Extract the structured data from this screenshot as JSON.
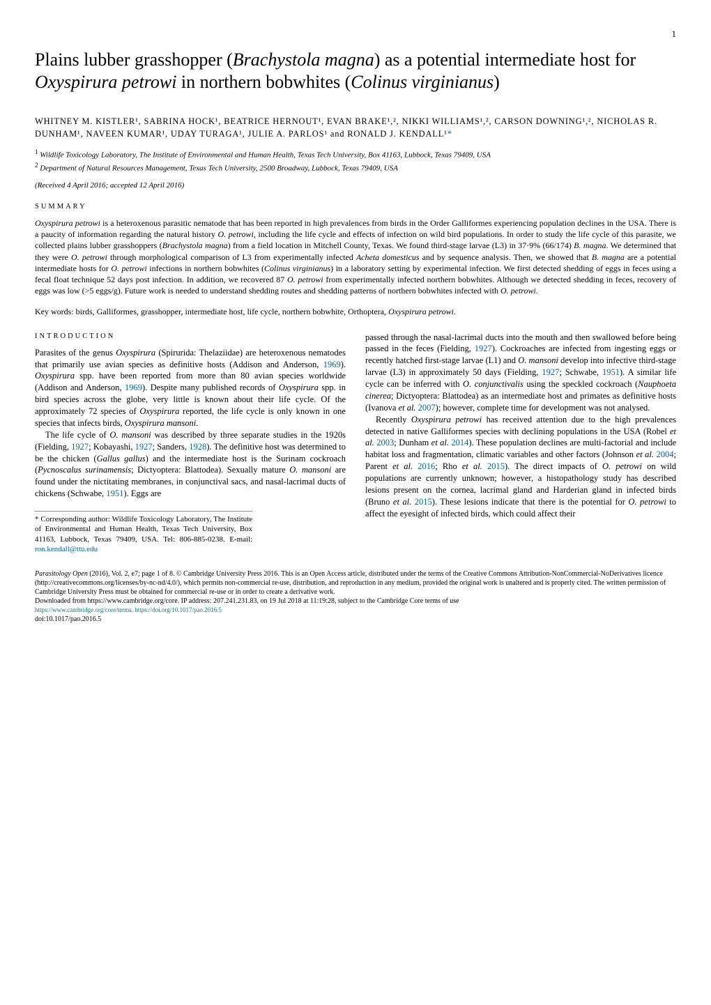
{
  "page_number": "1",
  "title_plain_before": "Plains lubber grasshopper (",
  "title_sp1": "Brachystola magna",
  "title_mid1": ") as a potential intermediate host for ",
  "title_sp2": "Oxyspirura petrowi",
  "title_mid2": " in northern bobwhites (",
  "title_sp3": "Colinus virginianus",
  "title_end": ")",
  "authors_line": "WHITNEY M. KISTLER¹, SABRINA HOCK¹, BEATRICE HERNOUT¹, EVAN BRAKE¹,², NIKKI WILLIAMS¹,², CARSON DOWNING¹,², NICHOLAS R. DUNHAM¹, NAVEEN KUMAR¹, UDAY TURAGA¹, JULIE A. PARLOS¹ and RONALD J. KENDALL¹",
  "authors_asterisk": "*",
  "aff1_sup": "1",
  "aff1": " Wildlife Toxicology Laboratory, The Institute of Environmental and Human Health, Texas Tech University, Box 41163, Lubbock, Texas 79409, USA",
  "aff2_sup": "2",
  "aff2": " Department of Natural Resources Management, Texas Tech University, 2500 Broadway, Lubbock, Texas 79409, USA",
  "received": "(Received 4 April 2016; accepted 12 April 2016)",
  "summary_heading": "SUMMARY",
  "abstract_html": "Oxyspirura petrowi is a heteroxenous parasitic nematode that has been reported in high prevalences from birds in the Order Galliformes experiencing population declines in the USA. There is a paucity of information regarding the natural history O. petrowi, including the life cycle and effects of infection on wild bird populations. In order to study the life cycle of this parasite, we collected plains lubber grasshoppers (Brachystola magna) from a field location in Mitchell County, Texas. We found third-stage larvae (L3) in 37·9% (66/174) B. magna. We determined that they were O. petrowi through morphological comparison of L3 from experimentally infected Acheta domesticus and by sequence analysis. Then, we showed that B. magna are a potential intermediate hosts for O. petrowi infections in northern bobwhites (Colinus virginianus) in a laboratory setting by experimental infection. We first detected shedding of eggs in feces using a fecal float technique 52 days post infection. In addition, we recovered 87 O. petrowi from experimentally infected northern bobwhites. Although we detected shedding in feces, recovery of eggs was low (>5 eggs/g). Future work is needed to understand shedding routes and shedding patterns of northern bobwhites infected with O. petrowi.",
  "keywords_label": "Key words: ",
  "keywords_text": "birds, Galliformes, grasshopper, intermediate host, life cycle, northern bobwhite, Orthoptera, ",
  "keywords_italic": "Oxyspirura petrowi",
  "keywords_end": ".",
  "intro_heading": "INTRODUCTION",
  "col1_p1": "Parasites of the genus Oxyspirura (Spirurida: Thelaziidae) are heteroxenous nematodes that primarily use avian species as definitive hosts (Addison and Anderson, 1969). Oxyspirura spp. have been reported from more than 80 avian species worldwide (Addison and Anderson, 1969). Despite many published records of Oxyspirura spp. in bird species across the globe, very little is known about their life cycle. Of the approximately 72 species of Oxyspirura reported, the life cycle is only known in one species that infects birds, Oxyspirura mansoni.",
  "col1_p2": "The life cycle of O. mansoni was described by three separate studies in the 1920s (Fielding, 1927; Kobayashi, 1927; Sanders, 1928). The definitive host was determined to be the chicken (Gallus gallus) and the intermediate host is the Surinam cockroach (Pycnoscalus surinamensis; Dictyoptera: Blattodea). Sexually mature O. mansoni are found under the nictitating membranes, in conjunctival sacs, and nasal-lacrimal ducts of chickens (Schwabe, 1951). Eggs are",
  "corresp_text_before": "* Corresponding author: Wildlife Toxicology Laboratory, The Institute of Environmental and Human Health, Texas Tech University, Box 41163, Lubbock, Texas 79409, USA. Tel: 806-885-0238. E-mail: ",
  "corresp_email": "ron.kendall@ttu.edu",
  "col2_p1": "passed through the nasal-lacrimal ducts into the mouth and then swallowed before being passed in the feces (Fielding, 1927). Cockroaches are infected from ingesting eggs or recently hatched first-stage larvae (L1) and O. mansoni develop into infective third-stage larvae (L3) in approximately 50 days (Fielding, 1927; Schwabe, 1951). A similar life cycle can be inferred with O. conjunctivalis using the speckled cockroach (Nauphoeta cinerea; Dictyoptera: Blattodea) as an intermediate host and primates as definitive hosts (Ivanova et al. 2007); however, complete time for development was not analysed.",
  "col2_p2": "Recently Oxyspirura petrowi has received attention due to the high prevalences detected in native Galliformes species with declining populations in the USA (Robel et al. 2003; Dunham et al. 2014). These population declines are multi-factorial and include habitat loss and fragmentation, climatic variables and other factors (Johnson et al. 2004; Parent et al. 2016; Rho et al. 2015). The direct impacts of O. petrowi on wild populations are currently unknown; however, a histopathology study has described lesions present on the cornea, lacrimal gland and Harderian gland in infected birds (Bruno et al. 2015). These lesions indicate that there is the potential for O. petrowi to affect the eyesight of infected birds, which could affect their",
  "footer_journal": "Parasitology Open",
  "footer_citation": " (2016), Vol. 2, e7; page 1 of 8.   © Cambridge University Press 2016. This is an Open Access article, distributed under the terms of the Creative Commons Attribution-NonCommercial-NoDerivatives licence (http://creativecommons.org/licenses/by-nc-nd/4.0/), which permits non-commercial re-use, distribution, and reproduction in any medium, provided the original work is unaltered and is properly cited. The written permission of Cambridge University Press must be obtained for commercial re-use or in order to create a derivative work.",
  "footer_download": "Downloaded from https://www.cambridge.org/core. IP address: 207.241.231.83, on 19 Jul 2018 at 11:19:28, subject to the Cambridge Core terms of use",
  "footer_url": "https://www.cambridge.org/core/terms. https://doi.org/10.1017/pao.2016.5",
  "doi": "doi:10.1017/pao.2016.5"
}
